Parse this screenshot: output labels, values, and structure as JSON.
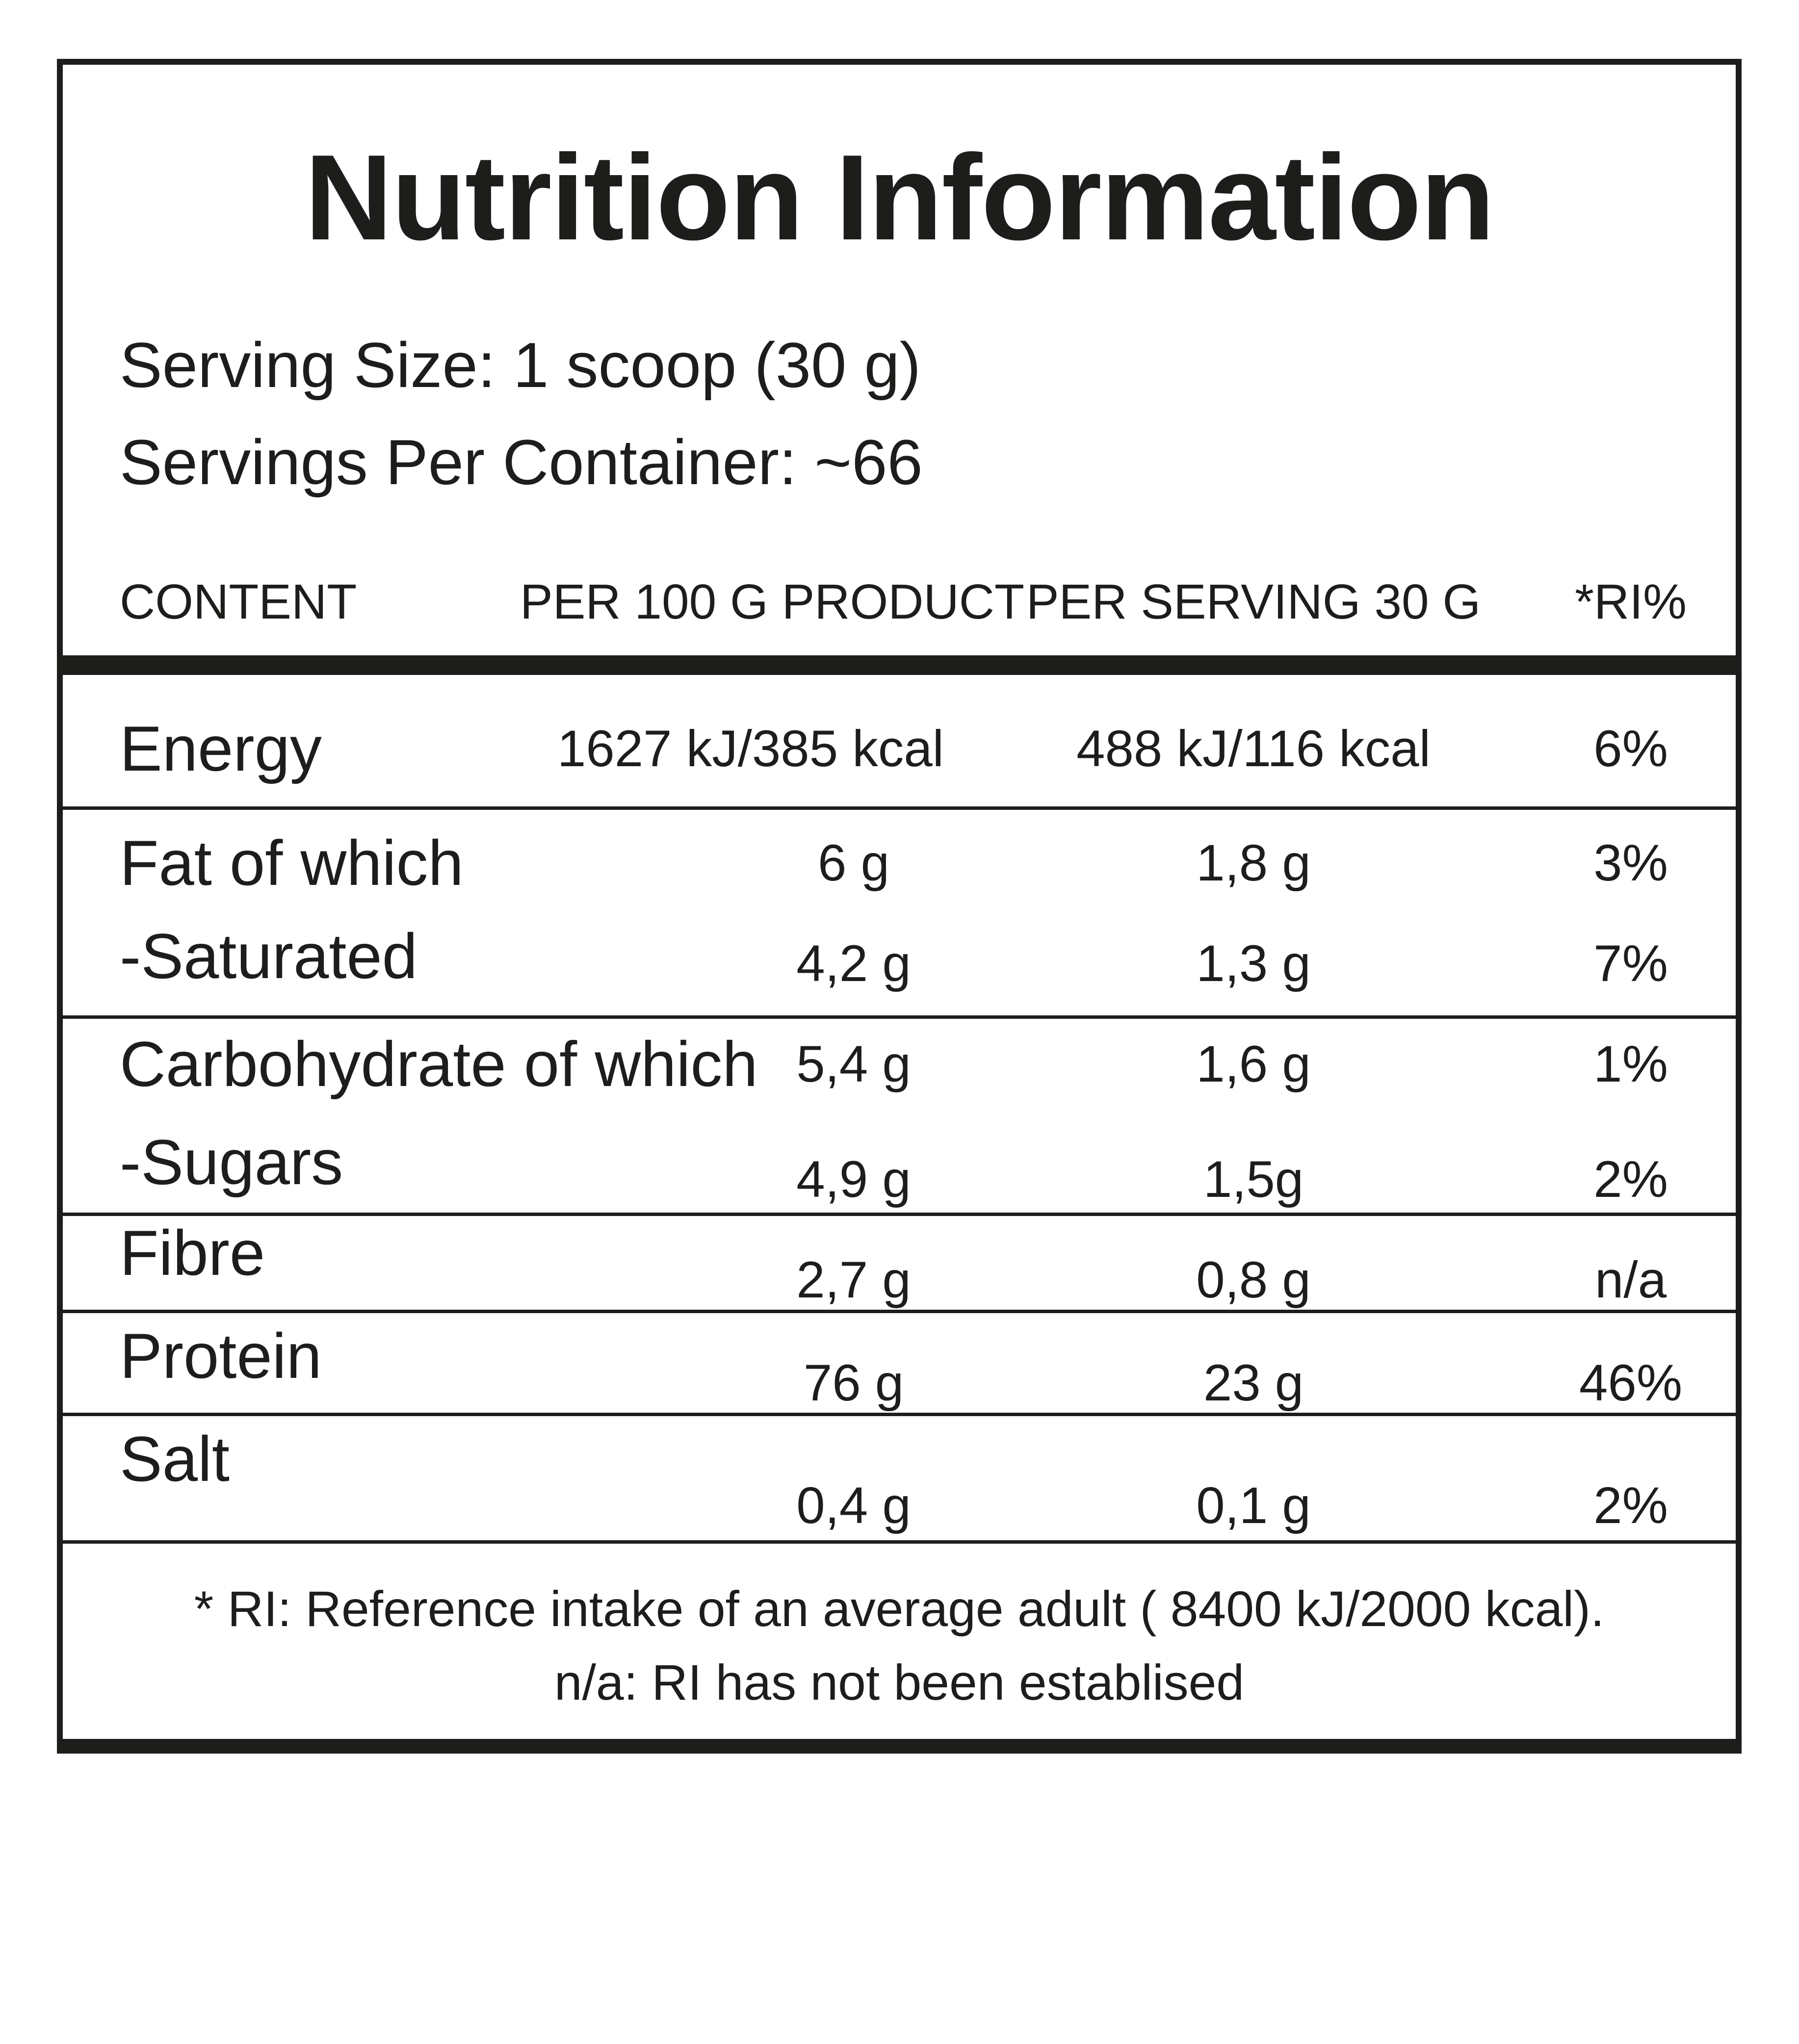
{
  "label": {
    "title": "Nutrition Information",
    "serving_size": "Serving Size: 1 scoop (30 g)",
    "servings_per_container": "Servings Per Container: ~66",
    "columns": [
      "CONTENT",
      "PER 100 G PRODUCT",
      "PER SERVING 30 G",
      "*RI%"
    ],
    "rows": [
      {
        "name": "Energy",
        "per100": "1627 kJ/385 kcal",
        "perServing": "488 kJ/116 kcal",
        "ri": "6%"
      },
      {
        "name": "Fat of which",
        "per100": "6 g",
        "perServing": "1,8 g",
        "ri": "3%"
      },
      {
        "name": "-Saturated",
        "per100": "4,2 g",
        "perServing": "1,3 g",
        "ri": "7%"
      },
      {
        "name": "Carbohydrate of which",
        "per100": "5,4 g",
        "perServing": "1,6 g",
        "ri": "1%"
      },
      {
        "name": "-Sugars",
        "per100": "4,9 g",
        "perServing": "1,5g",
        "ri": "2%"
      },
      {
        "name": "Fibre",
        "per100": "2,7 g",
        "perServing": "0,8 g",
        "ri": "n/a"
      },
      {
        "name": "Protein",
        "per100": "76 g",
        "perServing": "23 g",
        "ri": "46%"
      },
      {
        "name": "Salt",
        "per100": "0,4 g",
        "perServing": "0,1 g",
        "ri": "2%"
      }
    ],
    "footnote_line1": "* RI: Reference intake of an average adult ( 8400 kJ/2000 kcal).",
    "footnote_line2": "n/a: RI has not been establised"
  },
  "colors": {
    "ink": "#1d1d1b",
    "background": "#ffffff"
  }
}
